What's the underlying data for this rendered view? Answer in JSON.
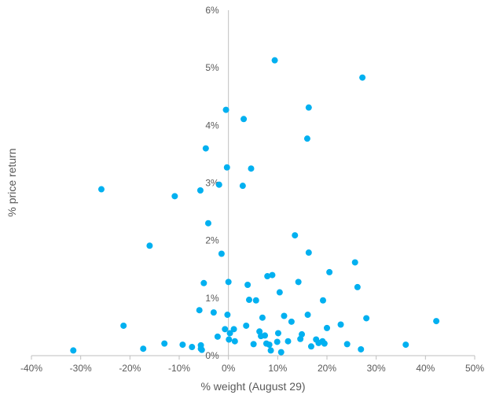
{
  "chart_data": {
    "type": "scatter",
    "xlabel": "% weight (August 29)",
    "ylabel": "% price return",
    "xlim": [
      -40,
      50
    ],
    "ylim": [
      0,
      6
    ],
    "x_ticks": [
      -40,
      -30,
      -20,
      -10,
      0,
      10,
      20,
      30,
      40,
      50
    ],
    "y_ticks": [
      0,
      1,
      2,
      3,
      4,
      5,
      6
    ],
    "x_tick_labels": [
      "-40%",
      "-30%",
      "-20%",
      "-10%",
      "0%",
      "10%",
      "20%",
      "30%",
      "40%",
      "50%"
    ],
    "y_tick_labels": [
      "0%",
      "1%",
      "2%",
      "3%",
      "4%",
      "5%",
      "6%"
    ],
    "grid": false,
    "marker_color": "#00B0F0",
    "axis_color": "#BFBFBF",
    "points": [
      {
        "x": -31.5,
        "y": 0.09
      },
      {
        "x": -25.8,
        "y": 2.89
      },
      {
        "x": -21.3,
        "y": 0.52
      },
      {
        "x": -17.3,
        "y": 0.12
      },
      {
        "x": -16.0,
        "y": 1.91
      },
      {
        "x": -13.0,
        "y": 0.21
      },
      {
        "x": -10.9,
        "y": 2.77
      },
      {
        "x": -9.3,
        "y": 0.19
      },
      {
        "x": -7.4,
        "y": 0.15
      },
      {
        "x": -5.9,
        "y": 0.79
      },
      {
        "x": -5.7,
        "y": 2.87
      },
      {
        "x": -5.6,
        "y": 0.18
      },
      {
        "x": -5.6,
        "y": 0.12
      },
      {
        "x": -5.4,
        "y": 0.1
      },
      {
        "x": -5.0,
        "y": 1.26
      },
      {
        "x": -4.6,
        "y": 3.6
      },
      {
        "x": -4.1,
        "y": 2.3
      },
      {
        "x": -3.0,
        "y": 0.75
      },
      {
        "x": -2.2,
        "y": 0.33
      },
      {
        "x": -1.9,
        "y": 2.97
      },
      {
        "x": -1.4,
        "y": 1.77
      },
      {
        "x": -0.7,
        "y": 0.46
      },
      {
        "x": -0.5,
        "y": 4.27
      },
      {
        "x": -0.3,
        "y": 3.27
      },
      {
        "x": -0.2,
        "y": 0.71
      },
      {
        "x": 0.0,
        "y": 1.28
      },
      {
        "x": 0.1,
        "y": 0.28
      },
      {
        "x": 0.3,
        "y": 0.39
      },
      {
        "x": 1.1,
        "y": 0.46
      },
      {
        "x": 1.3,
        "y": 0.25
      },
      {
        "x": 2.9,
        "y": 2.95
      },
      {
        "x": 3.1,
        "y": 4.11
      },
      {
        "x": 3.6,
        "y": 0.52
      },
      {
        "x": 3.9,
        "y": 1.23
      },
      {
        "x": 4.2,
        "y": 0.97
      },
      {
        "x": 4.6,
        "y": 3.25
      },
      {
        "x": 5.1,
        "y": 0.2
      },
      {
        "x": 5.6,
        "y": 0.96
      },
      {
        "x": 6.3,
        "y": 0.42
      },
      {
        "x": 6.6,
        "y": 0.34
      },
      {
        "x": 6.9,
        "y": 0.66
      },
      {
        "x": 7.4,
        "y": 0.35
      },
      {
        "x": 7.7,
        "y": 0.21
      },
      {
        "x": 7.9,
        "y": 1.38
      },
      {
        "x": 8.3,
        "y": 0.19
      },
      {
        "x": 8.6,
        "y": 0.09
      },
      {
        "x": 8.9,
        "y": 1.4
      },
      {
        "x": 9.4,
        "y": 5.13
      },
      {
        "x": 9.9,
        "y": 0.24
      },
      {
        "x": 10.1,
        "y": 0.39
      },
      {
        "x": 10.4,
        "y": 1.1
      },
      {
        "x": 10.7,
        "y": 0.06
      },
      {
        "x": 11.3,
        "y": 0.69
      },
      {
        "x": 12.1,
        "y": 0.25
      },
      {
        "x": 12.8,
        "y": 0.59
      },
      {
        "x": 13.5,
        "y": 2.09
      },
      {
        "x": 14.2,
        "y": 1.28
      },
      {
        "x": 14.6,
        "y": 0.29
      },
      {
        "x": 14.9,
        "y": 0.37
      },
      {
        "x": 16.0,
        "y": 3.77
      },
      {
        "x": 16.1,
        "y": 0.71
      },
      {
        "x": 16.3,
        "y": 4.31
      },
      {
        "x": 16.3,
        "y": 1.79
      },
      {
        "x": 16.8,
        "y": 0.16
      },
      {
        "x": 17.8,
        "y": 0.28
      },
      {
        "x": 18.3,
        "y": 0.22
      },
      {
        "x": 19.1,
        "y": 0.25
      },
      {
        "x": 19.2,
        "y": 0.96
      },
      {
        "x": 19.5,
        "y": 0.21
      },
      {
        "x": 20.0,
        "y": 0.48
      },
      {
        "x": 20.5,
        "y": 1.45
      },
      {
        "x": 22.8,
        "y": 0.54
      },
      {
        "x": 24.1,
        "y": 0.2
      },
      {
        "x": 25.7,
        "y": 1.62
      },
      {
        "x": 26.2,
        "y": 1.19
      },
      {
        "x": 26.9,
        "y": 0.11
      },
      {
        "x": 27.2,
        "y": 4.83
      },
      {
        "x": 28.0,
        "y": 0.65
      },
      {
        "x": 36.0,
        "y": 0.19
      },
      {
        "x": 42.2,
        "y": 0.6
      }
    ]
  }
}
